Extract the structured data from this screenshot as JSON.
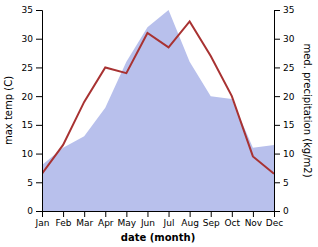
{
  "chart_data": {
    "type": "line",
    "categories": [
      "Jan",
      "Feb",
      "Mar",
      "Apr",
      "May",
      "Jun",
      "Jul",
      "Aug",
      "Sep",
      "Oct",
      "Nov",
      "Dec"
    ],
    "series": [
      {
        "type": "area",
        "axis": "y2",
        "color": "#b8c0ec",
        "values": [
          8,
          11,
          13,
          18,
          26,
          32,
          35,
          26,
          20,
          19.5,
          11,
          11.5
        ]
      },
      {
        "type": "line",
        "color": "#a83232",
        "values": [
          6.5,
          11.5,
          19.0,
          25.0,
          24.0,
          31.0,
          28.5,
          33.0,
          27.0,
          20.0,
          9.5,
          6.5
        ]
      }
    ],
    "xlabel": "date (month)",
    "ylabel": "max temp (C)",
    "y2label": "med. precipitation (kg/m2)",
    "ylim": [
      0,
      35
    ],
    "yticks": [
      0,
      5,
      10,
      15,
      20,
      25,
      30,
      35
    ],
    "y2lim": [
      0,
      35
    ],
    "y2ticks": [
      0,
      5,
      10,
      15,
      20,
      25,
      30,
      35
    ]
  }
}
